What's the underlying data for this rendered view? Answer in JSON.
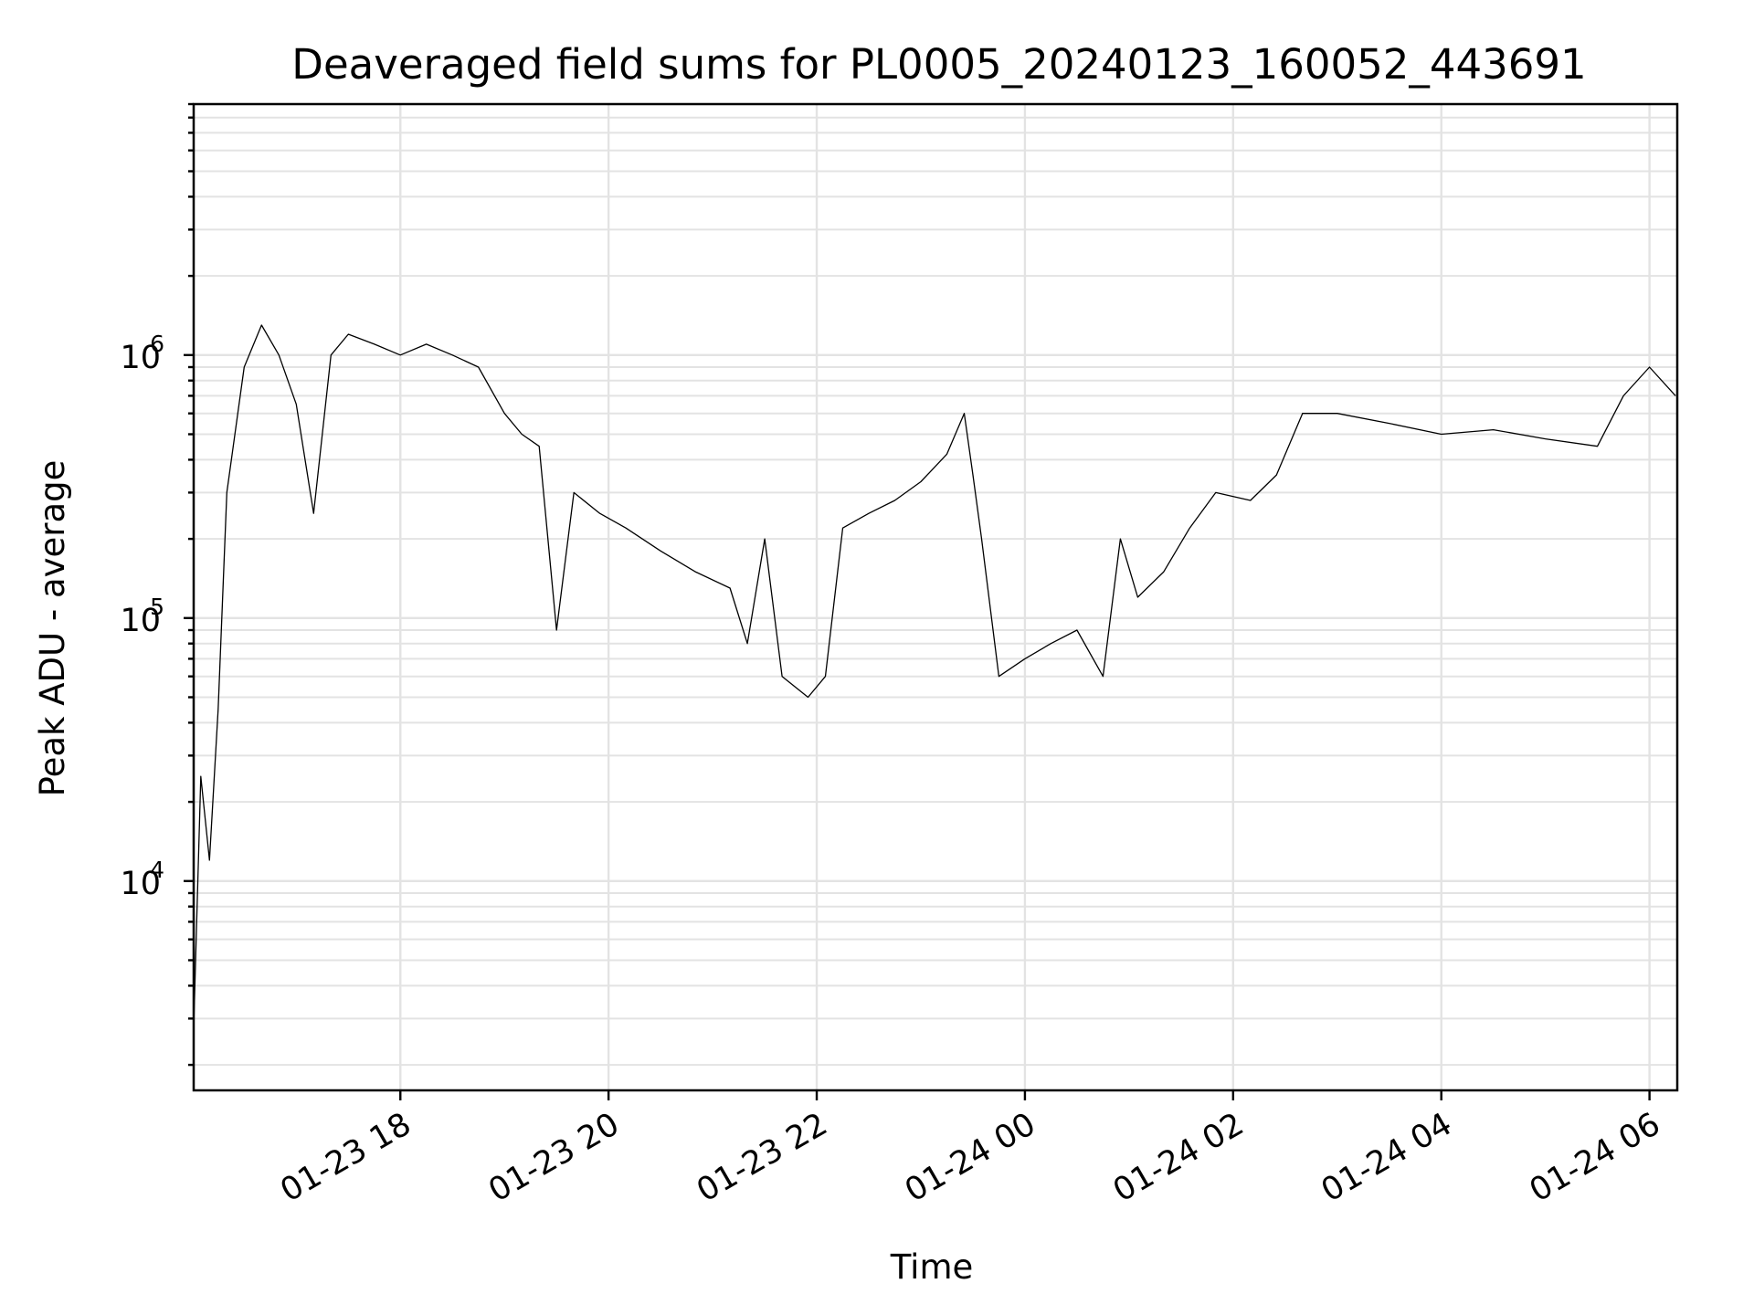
{
  "chart_data": {
    "type": "line",
    "title": "Deaveraged field sums for PL0005_20240123_160052_443691",
    "xlabel": "Time",
    "ylabel": "Peak ADU - average",
    "yscale": "log",
    "grid": "major+minor, light gray",
    "legend": "none",
    "xlim": [
      "2024-01-23 16:00:52",
      "2024-01-24 06:16"
    ],
    "ylim": [
      1600,
      9000000
    ],
    "x_ticks": [
      {
        "value": "2024-01-23 18:00",
        "label": "01-23 18"
      },
      {
        "value": "2024-01-23 20:00",
        "label": "01-23 20"
      },
      {
        "value": "2024-01-23 22:00",
        "label": "01-23 22"
      },
      {
        "value": "2024-01-24 00:00",
        "label": "01-24 00"
      },
      {
        "value": "2024-01-24 02:00",
        "label": "01-24 02"
      },
      {
        "value": "2024-01-24 04:00",
        "label": "01-24 04"
      },
      {
        "value": "2024-01-24 06:00",
        "label": "01-24 06"
      }
    ],
    "y_ticks": [
      {
        "value": 10000,
        "base": "10",
        "exp": "4"
      },
      {
        "value": 100000,
        "base": "10",
        "exp": "5"
      },
      {
        "value": 1000000,
        "base": "10",
        "exp": "6"
      }
    ],
    "series": [
      {
        "color": "#000000",
        "points": [
          [
            "2024-01-23 16:01",
            3000
          ],
          [
            "2024-01-23 16:05",
            25000
          ],
          [
            "2024-01-23 16:10",
            12000
          ],
          [
            "2024-01-23 16:15",
            45000
          ],
          [
            "2024-01-23 16:20",
            300000
          ],
          [
            "2024-01-23 16:30",
            900000
          ],
          [
            "2024-01-23 16:40",
            1300000
          ],
          [
            "2024-01-23 16:50",
            1000000
          ],
          [
            "2024-01-23 17:00",
            650000
          ],
          [
            "2024-01-23 17:10",
            250000
          ],
          [
            "2024-01-23 17:20",
            1000000
          ],
          [
            "2024-01-23 17:30",
            1200000
          ],
          [
            "2024-01-23 17:45",
            1100000
          ],
          [
            "2024-01-23 18:00",
            1000000
          ],
          [
            "2024-01-23 18:15",
            1100000
          ],
          [
            "2024-01-23 18:30",
            1000000
          ],
          [
            "2024-01-23 18:45",
            900000
          ],
          [
            "2024-01-23 19:00",
            600000
          ],
          [
            "2024-01-23 19:10",
            500000
          ],
          [
            "2024-01-23 19:20",
            450000
          ],
          [
            "2024-01-23 19:30",
            90000
          ],
          [
            "2024-01-23 19:40",
            300000
          ],
          [
            "2024-01-23 19:55",
            250000
          ],
          [
            "2024-01-23 20:10",
            220000
          ],
          [
            "2024-01-23 20:30",
            180000
          ],
          [
            "2024-01-23 20:50",
            150000
          ],
          [
            "2024-01-23 21:10",
            130000
          ],
          [
            "2024-01-23 21:20",
            80000
          ],
          [
            "2024-01-23 21:30",
            200000
          ],
          [
            "2024-01-23 21:40",
            60000
          ],
          [
            "2024-01-23 21:55",
            50000
          ],
          [
            "2024-01-23 22:05",
            60000
          ],
          [
            "2024-01-23 22:15",
            220000
          ],
          [
            "2024-01-23 22:30",
            250000
          ],
          [
            "2024-01-23 22:45",
            280000
          ],
          [
            "2024-01-23 23:00",
            330000
          ],
          [
            "2024-01-23 23:15",
            420000
          ],
          [
            "2024-01-23 23:25",
            600000
          ],
          [
            "2024-01-23 23:30",
            350000
          ],
          [
            "2024-01-23 23:35",
            200000
          ],
          [
            "2024-01-23 23:45",
            60000
          ],
          [
            "2024-01-24 00:00",
            70000
          ],
          [
            "2024-01-24 00:15",
            80000
          ],
          [
            "2024-01-24 00:30",
            90000
          ],
          [
            "2024-01-24 00:45",
            60000
          ],
          [
            "2024-01-24 00:55",
            200000
          ],
          [
            "2024-01-24 01:05",
            120000
          ],
          [
            "2024-01-24 01:20",
            150000
          ],
          [
            "2024-01-24 01:35",
            220000
          ],
          [
            "2024-01-24 01:50",
            300000
          ],
          [
            "2024-01-24 02:10",
            280000
          ],
          [
            "2024-01-24 02:25",
            350000
          ],
          [
            "2024-01-24 02:40",
            600000
          ],
          [
            "2024-01-24 03:00",
            600000
          ],
          [
            "2024-01-24 03:30",
            550000
          ],
          [
            "2024-01-24 04:00",
            500000
          ],
          [
            "2024-01-24 04:30",
            520000
          ],
          [
            "2024-01-24 05:00",
            480000
          ],
          [
            "2024-01-24 05:30",
            450000
          ],
          [
            "2024-01-24 05:45",
            700000
          ],
          [
            "2024-01-24 06:00",
            900000
          ],
          [
            "2024-01-24 06:15",
            700000
          ]
        ]
      }
    ]
  }
}
